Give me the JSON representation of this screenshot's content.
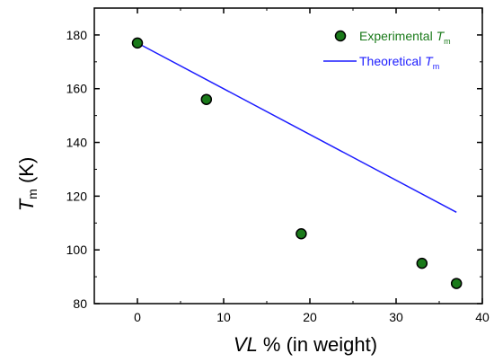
{
  "chart_data": {
    "type": "scatter",
    "xlabel": {
      "italic": "VL",
      "rest": " % (in weight)"
    },
    "ylabel": {
      "italic": "T",
      "sub": "m",
      "rest": " (K)"
    },
    "xlim": [
      -5,
      40
    ],
    "ylim": [
      80,
      190
    ],
    "xticks": [
      0,
      10,
      20,
      30,
      40
    ],
    "yticks": [
      80,
      100,
      120,
      140,
      160,
      180
    ],
    "legend_position": "top-right",
    "series": [
      {
        "name": "Experimental T_m",
        "legend_main": "Experimental ",
        "legend_italic": "T",
        "legend_sub": "m",
        "kind": "scatter",
        "color": "#1a7a1a",
        "x": [
          0,
          8,
          19,
          33,
          37
        ],
        "y": [
          177,
          156,
          106,
          95,
          87.5
        ]
      },
      {
        "name": "Theoretical T_m",
        "legend_main": "Theoretical ",
        "legend_italic": "T",
        "legend_sub": "m",
        "kind": "line",
        "color": "#1c1cff",
        "x": [
          0,
          37
        ],
        "y": [
          177,
          114
        ]
      }
    ]
  }
}
